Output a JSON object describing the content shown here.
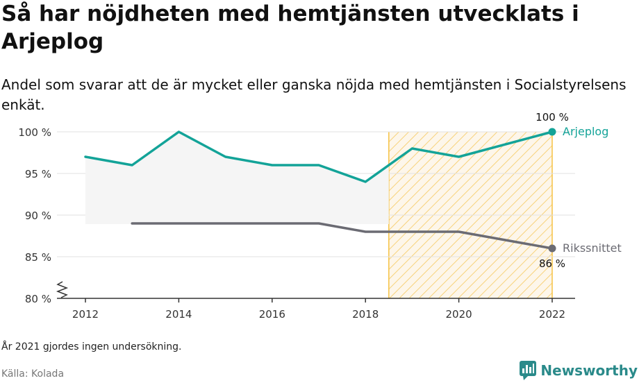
{
  "title": "Så har nöjdheten med hemtjänsten utvecklats i Arjeplog",
  "subtitle": "Andel som svarar att de är mycket eller ganska nöjda med hemtjänsten i Socialstyrelsens enkät.",
  "note": "År 2021 gjordes ingen undersökning.",
  "source": "Källa: Kolada",
  "brand": {
    "name": "Newsworthy",
    "logo_icon": "bar-chart-speech-bubble-icon"
  },
  "chart_data": {
    "type": "line",
    "x_ticks": [
      2012,
      2014,
      2016,
      2018,
      2020,
      2022
    ],
    "y_ticks": [
      80,
      85,
      90,
      95,
      100
    ],
    "y_tick_labels": [
      "80 %",
      "85 %",
      "90 %",
      "95 %",
      "100 %"
    ],
    "x_tick_labels": [
      "2012",
      "2014",
      "2016",
      "2018",
      "2020",
      "2022"
    ],
    "xlim": [
      2011.5,
      2022.5
    ],
    "ylim": [
      80,
      100
    ],
    "grid": "horizontal",
    "y_axis_break": true,
    "highlight_region": {
      "from": 2018.5,
      "to": 2022,
      "color": "#f6c244"
    },
    "series": [
      {
        "name": "Arjeplog",
        "color": "#13a398",
        "x": [
          2012,
          2013,
          2014,
          2015,
          2016,
          2017,
          2018,
          2019,
          2020,
          2022
        ],
        "y": [
          97,
          96,
          100,
          97,
          96,
          96,
          94,
          98,
          97,
          100
        ],
        "end_label": "100 %"
      },
      {
        "name": "Rikssnittet",
        "color": "#6b6b73",
        "x": [
          2013,
          2014,
          2015,
          2016,
          2017,
          2018,
          2019,
          2020,
          2022
        ],
        "y": [
          89,
          89,
          89,
          89,
          89,
          88,
          88,
          88,
          86
        ],
        "end_label": "86 %"
      }
    ]
  }
}
